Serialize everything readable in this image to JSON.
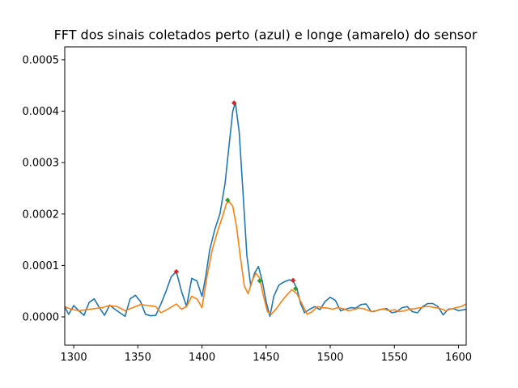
{
  "chart_data": {
    "type": "line",
    "title": "FFT dos sinais coletados perto (azul) e longe (amarelo) do sensor",
    "xlabel": "",
    "ylabel": "",
    "xlim": [
      1293,
      1606
    ],
    "ylim": [
      -5.5e-05,
      0.000525
    ],
    "xticks": [
      1300,
      1350,
      1400,
      1450,
      1500,
      1550,
      1600
    ],
    "xtick_labels": [
      "1300",
      "1350",
      "1400",
      "1450",
      "1500",
      "1550",
      "1600"
    ],
    "yticks": [
      0.0,
      0.0001,
      0.0002,
      0.0003,
      0.0004,
      0.0005
    ],
    "ytick_labels": [
      "0.0000",
      "0.0001",
      "0.0002",
      "0.0003",
      "0.0004",
      "0.0005"
    ],
    "grid": false,
    "colors": {
      "blue": "#1f77b4",
      "orange": "#ff7f0e",
      "peak_red": "#d62728",
      "peak_green": "#2ca02c"
    },
    "series": [
      {
        "color": "#1f77b4",
        "x": [
          1293,
          1296,
          1300,
          1304,
          1308,
          1312,
          1316,
          1320,
          1324,
          1328,
          1332,
          1336,
          1340,
          1344,
          1348,
          1352,
          1356,
          1360,
          1364,
          1368,
          1372,
          1376,
          1380,
          1384,
          1388,
          1392,
          1396,
          1400,
          1403,
          1406,
          1410,
          1414,
          1418,
          1421,
          1424,
          1426,
          1429,
          1432,
          1435,
          1438,
          1441,
          1444,
          1447,
          1450,
          1453,
          1456,
          1460,
          1464,
          1468,
          1471,
          1474,
          1477,
          1480,
          1484,
          1488,
          1492,
          1496,
          1500,
          1504,
          1508,
          1512,
          1516,
          1520,
          1524,
          1528,
          1532,
          1536,
          1540,
          1544,
          1548,
          1552,
          1556,
          1560,
          1564,
          1568,
          1572,
          1576,
          1580,
          1584,
          1588,
          1592,
          1596,
          1600,
          1606
        ],
        "y": [
          2e-05,
          5e-06,
          2.2e-05,
          1.2e-05,
          3e-06,
          2.8e-05,
          3.5e-05,
          1.8e-05,
          3e-06,
          2.3e-05,
          1.5e-05,
          8e-06,
          1e-06,
          3.5e-05,
          4.2e-05,
          3e-05,
          5e-06,
          2e-06,
          3e-06,
          2.5e-05,
          5e-05,
          7.8e-05,
          8.8e-05,
          5e-05,
          2e-05,
          7.5e-05,
          7e-05,
          4e-05,
          8e-05,
          0.00013,
          0.00017,
          0.0002,
          0.00026,
          0.00033,
          0.0004,
          0.000417,
          0.00036,
          0.00024,
          0.00012,
          6e-05,
          8.5e-05,
          9.8e-05,
          7e-05,
          3e-05,
          1e-06,
          4e-05,
          6.2e-05,
          6.8e-05,
          7.2e-05,
          7e-05,
          5.5e-05,
          2.5e-05,
          8e-06,
          1.5e-05,
          2e-05,
          1.4e-05,
          3e-05,
          3.8e-05,
          3.2e-05,
          1.2e-05,
          1.5e-05,
          1.8e-05,
          1.7e-05,
          2.4e-05,
          2.5e-05,
          1e-05,
          1.2e-05,
          1.5e-05,
          1.6e-05,
          8e-06,
          1e-05,
          1.8e-05,
          2e-05,
          1e-05,
          8e-06,
          2e-05,
          2.6e-05,
          2.6e-05,
          2e-05,
          4e-06,
          1.5e-05,
          1.6e-05,
          1.2e-05,
          1.5e-05
        ]
      },
      {
        "color": "#ff7f0e",
        "x": [
          1293,
          1298,
          1304,
          1310,
          1316,
          1322,
          1328,
          1334,
          1340,
          1346,
          1352,
          1358,
          1364,
          1368,
          1374,
          1380,
          1384,
          1388,
          1392,
          1396,
          1400,
          1404,
          1408,
          1412,
          1416,
          1419,
          1421,
          1424,
          1427,
          1430,
          1433,
          1436,
          1439,
          1442,
          1445,
          1448,
          1451,
          1454,
          1458,
          1462,
          1466,
          1470,
          1474,
          1478,
          1482,
          1486,
          1490,
          1494,
          1498,
          1502,
          1506,
          1510,
          1514,
          1518,
          1522,
          1526,
          1530,
          1534,
          1538,
          1542,
          1546,
          1550,
          1554,
          1558,
          1562,
          1566,
          1570,
          1574,
          1578,
          1582,
          1586,
          1590,
          1594,
          1598,
          1602,
          1606
        ],
        "y": [
          2e-05,
          1.5e-05,
          1.2e-05,
          1.4e-05,
          1.6e-05,
          1.8e-05,
          2.2e-05,
          2e-05,
          1.2e-05,
          1.8e-05,
          2.4e-05,
          2.2e-05,
          2e-05,
          8e-06,
          1.6e-05,
          2.5e-05,
          1.5e-05,
          2e-05,
          4e-05,
          3.5e-05,
          1.8e-05,
          8e-05,
          0.00013,
          0.000165,
          0.000195,
          0.00022,
          0.000225,
          0.000215,
          0.000175,
          0.000115,
          6e-05,
          4.5e-05,
          7e-05,
          8.5e-05,
          7.5e-05,
          4e-05,
          1e-05,
          5e-06,
          1.6e-05,
          3e-05,
          4.2e-05,
          5.3e-05,
          4.5e-05,
          2.5e-05,
          5e-06,
          1e-05,
          2e-05,
          1.8e-05,
          1.7e-05,
          1.5e-05,
          1.8e-05,
          1.6e-05,
          1.2e-05,
          1.4e-05,
          1.7e-05,
          1.6e-05,
          1.2e-05,
          1e-05,
          1.4e-05,
          1.5e-05,
          1.2e-05,
          1.4e-05,
          1e-05,
          1.2e-05,
          1.5e-05,
          1.6e-05,
          1.8e-05,
          2e-05,
          2e-05,
          1.8e-05,
          1.6e-05,
          1.2e-05,
          1.5e-05,
          1.8e-05,
          2e-05,
          2.5e-05
        ]
      }
    ],
    "markers": [
      {
        "color": "#d62728",
        "x": 1380,
        "y": 8.8e-05
      },
      {
        "color": "#d62728",
        "x": 1425,
        "y": 0.000416
      },
      {
        "color": "#d62728",
        "x": 1471,
        "y": 7.1e-05
      },
      {
        "color": "#2ca02c",
        "x": 1420,
        "y": 0.000227
      },
      {
        "color": "#2ca02c",
        "x": 1445,
        "y": 7e-05
      },
      {
        "color": "#2ca02c",
        "x": 1473,
        "y": 5.5e-05
      }
    ]
  }
}
